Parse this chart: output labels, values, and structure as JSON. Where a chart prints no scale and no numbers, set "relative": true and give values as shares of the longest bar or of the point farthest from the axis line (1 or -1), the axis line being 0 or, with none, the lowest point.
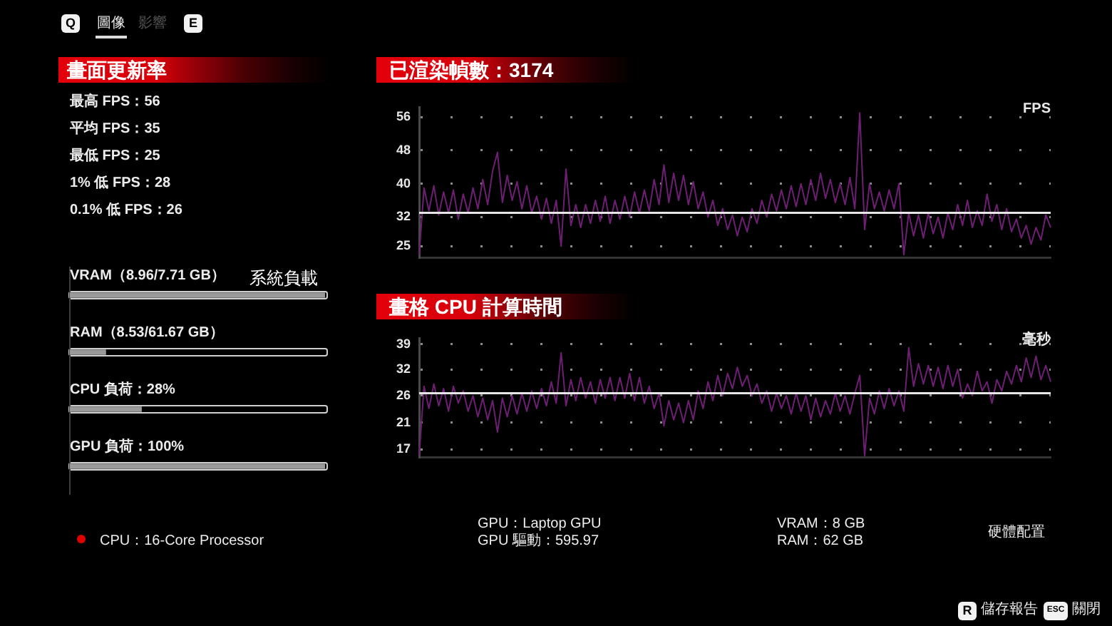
{
  "chart_data": [
    {
      "type": "other",
      "annotations": [
        "Q",
        "圖像",
        "影響",
        "E"
      ]
    },
    {
      "type": "other",
      "title": "畫面更新率",
      "annotations": [
        "最高 FPS：56",
        "平均 FPS：35",
        "最低 FPS：25",
        "1% 低 FPS：28",
        "0.1% 低 FPS：26"
      ]
    },
    {
      "type": "line",
      "title": "已渲染幀數：3174",
      "ylabel": "FPS",
      "categories": [
        null,
        null,
        null,
        null,
        null,
        null,
        null,
        null,
        null,
        null,
        null,
        null,
        null,
        null,
        null,
        null,
        null,
        null,
        null,
        null,
        null,
        null,
        null,
        null,
        null,
        null,
        null,
        null,
        null,
        null,
        null,
        null,
        null,
        null,
        null,
        null,
        null,
        null,
        null,
        null,
        null,
        null,
        null,
        null,
        null,
        null,
        null,
        null,
        null,
        null,
        null,
        null,
        null,
        null,
        null,
        null,
        null,
        null,
        null,
        null,
        null,
        null,
        null,
        null,
        null,
        null,
        null,
        null,
        null,
        null,
        null,
        null,
        null,
        null,
        null,
        null,
        null,
        null,
        null,
        null,
        null,
        null,
        null,
        null,
        null,
        null,
        null,
        null,
        null,
        null,
        null,
        null,
        null,
        null,
        null,
        null,
        null,
        null,
        null,
        null,
        null,
        null,
        null,
        null,
        null,
        null,
        null,
        null,
        null,
        null,
        null,
        null,
        null,
        null,
        null,
        null,
        null,
        null,
        null,
        null,
        null,
        null,
        null,
        null,
        null,
        null,
        null,
        null,
        null,
        null
      ],
      "values": [
        23,
        39,
        33.5,
        39.5,
        32.5,
        38,
        33,
        38.5,
        31.5,
        37.5,
        33,
        39,
        34,
        41,
        35,
        43,
        47.5,
        35.5,
        42,
        36,
        40.5,
        34,
        39.5,
        33,
        37,
        31.5,
        36.5,
        30.5,
        36,
        25,
        43.5,
        30,
        35,
        29.5,
        35,
        30.5,
        36,
        31,
        37,
        30.5,
        36,
        31.5,
        37,
        32,
        38,
        33,
        38.5,
        33.5,
        41,
        35,
        44.5,
        35.5,
        42.5,
        36,
        42,
        35,
        40.5,
        34,
        38,
        32,
        36,
        30,
        34,
        29,
        32.5,
        27.5,
        32,
        28.5,
        34,
        30.5,
        36,
        32,
        37.5,
        33.5,
        38.5,
        34,
        39.5,
        34.5,
        40,
        35,
        41,
        36,
        42.5,
        36.5,
        41,
        35.5,
        40,
        35,
        41.5,
        34,
        57,
        29,
        40,
        34,
        38,
        33.5,
        38.5,
        34,
        40,
        23,
        33,
        27.5,
        32.5,
        27,
        33,
        28,
        32,
        27,
        33,
        29,
        35,
        30,
        36,
        29.5,
        33.5,
        30,
        37.5,
        31,
        35,
        29,
        34,
        28.5,
        31.5,
        27,
        30,
        25.5,
        29.5,
        26.5,
        32.5,
        29.5
      ],
      "color": "#6e1f74",
      "ylim": [
        22.3,
        58.4
      ],
      "yticks": [
        25,
        32,
        40,
        48,
        56
      ],
      "grid": "y",
      "tick_labels": "y",
      "ref_lines": [
        {
          "axis": "y",
          "value": 33,
          "color": "#e6e6e6"
        }
      ]
    },
    {
      "type": "bar",
      "orientation": "horizontal",
      "relative": true,
      "title": "系統負載",
      "categories": [
        "VRAM（8.96/7.71 GB）",
        "RAM（8.53/61.67 GB）",
        "CPU 負荷：28%",
        "GPU 負荷：100%"
      ],
      "values": [
        1,
        0.14,
        0.28,
        1
      ],
      "color": "#9a9a9a"
    },
    {
      "type": "line",
      "title": "畫格 CPU 計算時間",
      "ylabel": "毫秒",
      "categories": [
        null,
        null,
        null,
        null,
        null,
        null,
        null,
        null,
        null,
        null,
        null,
        null,
        null,
        null,
        null,
        null,
        null,
        null,
        null,
        null,
        null,
        null,
        null,
        null,
        null,
        null,
        null,
        null,
        null,
        null,
        null,
        null,
        null,
        null,
        null,
        null,
        null,
        null,
        null,
        null,
        null,
        null,
        null,
        null,
        null,
        null,
        null,
        null,
        null,
        null,
        null,
        null,
        null,
        null,
        null,
        null,
        null,
        null,
        null,
        null,
        null,
        null,
        null,
        null,
        null,
        null,
        null,
        null,
        null,
        null,
        null,
        null,
        null,
        null,
        null,
        null,
        null,
        null,
        null,
        null,
        null,
        null,
        null,
        null,
        null,
        null,
        null,
        null,
        null,
        null,
        null,
        null,
        null,
        null,
        null,
        null,
        null,
        null,
        null,
        null,
        null,
        null,
        null,
        null,
        null,
        null,
        null,
        null,
        null,
        null,
        null,
        null,
        null,
        null,
        null,
        null,
        null,
        null,
        null,
        null,
        null,
        null,
        null,
        null,
        null,
        null,
        null,
        null,
        null,
        null
      ],
      "values": [
        16.2,
        28,
        23.5,
        28.5,
        24,
        27.5,
        23,
        28,
        24.5,
        27,
        23,
        26,
        22,
        25.5,
        21.5,
        25,
        19.5,
        25.5,
        22,
        26,
        22.5,
        26.5,
        23,
        27,
        23.5,
        27.5,
        24,
        29,
        24.5,
        36.5,
        24,
        29.5,
        25,
        30,
        25.5,
        29,
        24.5,
        29.5,
        25.5,
        30,
        25,
        30,
        25.5,
        31,
        25,
        30,
        24.5,
        28,
        23.5,
        26.5,
        20.5,
        25,
        21.5,
        24.5,
        21,
        25,
        21.5,
        27,
        23.5,
        29,
        25,
        30.5,
        26,
        31,
        27.5,
        32.5,
        28,
        30.5,
        26,
        28.5,
        24.5,
        27,
        23,
        26.5,
        23.5,
        26,
        22.5,
        26.5,
        23,
        26,
        21.5,
        25.5,
        22,
        25,
        22.5,
        26.5,
        23,
        26,
        22.5,
        26.5,
        30.5,
        16.2,
        25.5,
        22.5,
        27,
        23.5,
        27.5,
        24,
        27,
        23,
        38,
        28,
        33.5,
        28.5,
        33,
        28,
        32.5,
        27.5,
        33,
        28,
        32,
        25.5,
        28.5,
        26,
        31.5,
        27,
        29,
        24.5,
        29.5,
        27,
        31.5,
        28.5,
        33,
        29,
        35,
        30,
        35.5,
        29.5,
        33,
        29
      ],
      "color": "#6e1f74",
      "log": true,
      "ylim": [
        16,
        41
      ],
      "yticks": [
        17,
        21,
        26,
        32,
        39
      ],
      "grid": "y",
      "tick_labels": "y",
      "ref_lines": [
        {
          "axis": "y",
          "value": 26.5,
          "color": "#e6e6e6"
        }
      ]
    },
    {
      "type": "other",
      "annotations": [
        "CPU：16-Core Processor",
        "GPU：Laptop GPU",
        "GPU 驅動：595.97",
        "VRAM：8 GB",
        "RAM：62 GB",
        "硬體配置"
      ]
    },
    {
      "type": "other",
      "annotations": [
        "R",
        "儲存報告",
        "ESC",
        "關閉"
      ]
    }
  ]
}
